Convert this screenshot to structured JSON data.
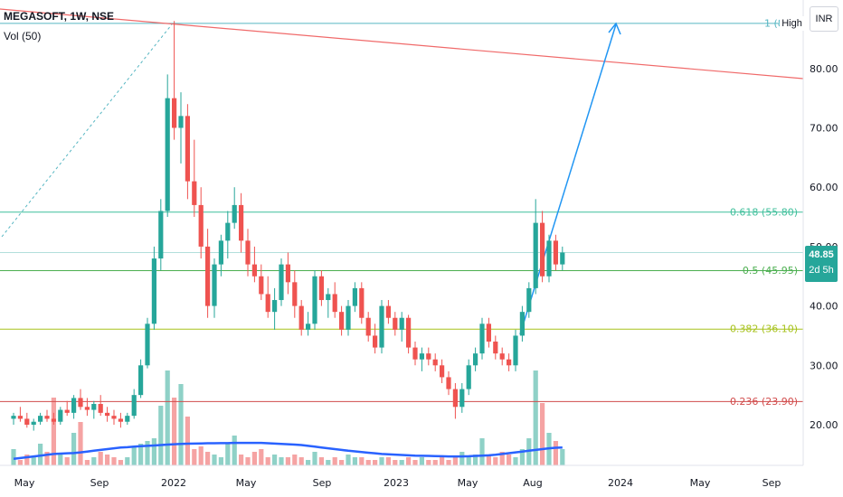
{
  "header": {
    "title": "MEGASOFT, 1W, NSE",
    "volume_label": "Vol (50)"
  },
  "currency_button": "INR",
  "high_tag": "High",
  "fib_top_label": "1 (8",
  "price_badge": {
    "value": "48.85",
    "countdown": "2d 5h"
  },
  "colors": {
    "up": "#26a69a",
    "down": "#ef5350",
    "up_vol": "#8fd1c7",
    "down_vol": "#f5a3a3",
    "volume_ma": "#2962ff",
    "trendline": "#f06a6a",
    "arrow": "#2196f3",
    "fib_100": "#56b6c2",
    "fib_618": "#3fbf9b",
    "fib_50": "#4caf50",
    "fib_382": "#a7c21c",
    "fib_236": "#d14b4b"
  },
  "chart_data": {
    "type": "candlestick",
    "timeframe": "1W",
    "x_ticks": [
      "May",
      "Sep",
      "2022",
      "May",
      "Sep",
      "2023",
      "May",
      "Aug",
      "2024",
      "May",
      "Sep"
    ],
    "y_ticks": [
      "20.00",
      "30.00",
      "40.00",
      "50.00",
      "60.00",
      "70.00",
      "80.00"
    ],
    "y_range": [
      12,
      92
    ],
    "fib_levels": [
      {
        "level": "1",
        "price": 87.6,
        "label": "1 (8"
      },
      {
        "level": "0.618",
        "price": 55.8,
        "label": "0.618 (55.80)"
      },
      {
        "level": "0.5",
        "price": 45.95,
        "label": "0.5 (45.95)"
      },
      {
        "level": "0.382",
        "price": 36.1,
        "label": "0.382 (36.10)"
      },
      {
        "level": "0.236",
        "price": 23.9,
        "label": "0.236 (23.90)"
      }
    ],
    "last_price": 48.85,
    "candles": [
      [
        21,
        22,
        20,
        21.5
      ],
      [
        21.5,
        23,
        20.5,
        21
      ],
      [
        21,
        22,
        19.5,
        20
      ],
      [
        20,
        21,
        19,
        20.5
      ],
      [
        20.5,
        22,
        20,
        21.5
      ],
      [
        21.5,
        22.5,
        20.5,
        21
      ],
      [
        21,
        22,
        20,
        20.5
      ],
      [
        20.5,
        23,
        20,
        22.5
      ],
      [
        22.5,
        24,
        21.5,
        22
      ],
      [
        22,
        25,
        21,
        24.5
      ],
      [
        24.5,
        26,
        22.5,
        23
      ],
      [
        23,
        24.5,
        21.5,
        22.5
      ],
      [
        22.5,
        24,
        21,
        23.5
      ],
      [
        23.5,
        25,
        21.5,
        22
      ],
      [
        22,
        23,
        20.5,
        21.5
      ],
      [
        21.5,
        22.5,
        20,
        21
      ],
      [
        21,
        22,
        19.5,
        20.5
      ],
      [
        20.5,
        22,
        20,
        21.5
      ],
      [
        21.5,
        26,
        21,
        25
      ],
      [
        25,
        31,
        24.5,
        30
      ],
      [
        30,
        38,
        29.5,
        37
      ],
      [
        37,
        50,
        36,
        48
      ],
      [
        48,
        58,
        46,
        56
      ],
      [
        56,
        79,
        55,
        75
      ],
      [
        75,
        88,
        68,
        70
      ],
      [
        70,
        76,
        64,
        72
      ],
      [
        72,
        74,
        58,
        61
      ],
      [
        61,
        68,
        55,
        57
      ],
      [
        57,
        60,
        48,
        50
      ],
      [
        50,
        53,
        38,
        40
      ],
      [
        40,
        48,
        38,
        47
      ],
      [
        47,
        52,
        45,
        51
      ],
      [
        51,
        56,
        48,
        54
      ],
      [
        54,
        60,
        53,
        57
      ],
      [
        57,
        59,
        49,
        51
      ],
      [
        51,
        53,
        45,
        47
      ],
      [
        47,
        50,
        44,
        45
      ],
      [
        45,
        47,
        41,
        42
      ],
      [
        42,
        45,
        38,
        39
      ],
      [
        39,
        43,
        36,
        41
      ],
      [
        41,
        48,
        40,
        47
      ],
      [
        47,
        49,
        42,
        44
      ],
      [
        44,
        46,
        38,
        40
      ],
      [
        40,
        41,
        35,
        36
      ],
      [
        36,
        39,
        35,
        37
      ],
      [
        37,
        46,
        36,
        45
      ],
      [
        45,
        46,
        40,
        41
      ],
      [
        41,
        43,
        38,
        42
      ],
      [
        42,
        44,
        38,
        39
      ],
      [
        39,
        40,
        35,
        36
      ],
      [
        36,
        41,
        35,
        40
      ],
      [
        40,
        44,
        39,
        43
      ],
      [
        43,
        44,
        37,
        38
      ],
      [
        38,
        39,
        34,
        35
      ],
      [
        35,
        37,
        32,
        33
      ],
      [
        33,
        41,
        32,
        40
      ],
      [
        40,
        41,
        37,
        38
      ],
      [
        38,
        39,
        35,
        36
      ],
      [
        36,
        39,
        34,
        38
      ],
      [
        38,
        38.5,
        32,
        33
      ],
      [
        33,
        34,
        30,
        31
      ],
      [
        31,
        33,
        29,
        32
      ],
      [
        32,
        33,
        30,
        31
      ],
      [
        31,
        32,
        29,
        30
      ],
      [
        30,
        31,
        27,
        28
      ],
      [
        28,
        29,
        25,
        26
      ],
      [
        26,
        27,
        21,
        23
      ],
      [
        23,
        27,
        22,
        26
      ],
      [
        26,
        31,
        25,
        30
      ],
      [
        30,
        33,
        29,
        32
      ],
      [
        32,
        38,
        31,
        37
      ],
      [
        37,
        38,
        33,
        34
      ],
      [
        34,
        35,
        31,
        32
      ],
      [
        32,
        33,
        30,
        31
      ],
      [
        31,
        32,
        29,
        30
      ],
      [
        30,
        36,
        29,
        35
      ],
      [
        35,
        40,
        34,
        39
      ],
      [
        39,
        44,
        38,
        43
      ],
      [
        43,
        58,
        42,
        54
      ],
      [
        54,
        56,
        44,
        45
      ],
      [
        45,
        52,
        44,
        51
      ],
      [
        51,
        52,
        46,
        47
      ],
      [
        47,
        50,
        46,
        49
      ]
    ],
    "volume": [
      6,
      2,
      4,
      3,
      8,
      5,
      25,
      4,
      3,
      12,
      16,
      2,
      3,
      5,
      4,
      3,
      2,
      3,
      7,
      8,
      9,
      10,
      22,
      35,
      25,
      30,
      18,
      6,
      7,
      5,
      4,
      3,
      8,
      11,
      4,
      3,
      5,
      6,
      3,
      4,
      3,
      3,
      4,
      3,
      2,
      5,
      3,
      2,
      3,
      2,
      4,
      3,
      3,
      2,
      2,
      3,
      3,
      2,
      2,
      3,
      2,
      3,
      2,
      2,
      3,
      2,
      3,
      5,
      3,
      4,
      10,
      4,
      3,
      5,
      4,
      3,
      6,
      10,
      35,
      23,
      12,
      9,
      6
    ],
    "volume_ma": [
      4,
      4.5,
      5,
      5.5,
      6,
      6.5,
      7,
      7.2,
      7.4,
      7.6,
      8,
      8.5,
      9,
      9.5,
      10,
      10.5,
      11,
      11.2,
      11.5,
      11.8,
      12,
      12.2,
      12.5,
      12.8,
      13,
      13.2,
      13.3,
      13.4,
      13.5,
      13.6,
      13.6,
      13.7,
      13.7,
      13.8,
      13.8,
      13.8,
      13.8,
      13.8,
      13.6,
      13.4,
      13.2,
      13,
      12.8,
      12.5,
      12,
      11.5,
      11,
      10.5,
      10,
      9.5,
      9,
      8.6,
      8.2,
      7.8,
      7.4,
      7,
      6.8,
      6.6,
      6.4,
      6.2,
      6,
      5.9,
      5.8,
      5.7,
      5.6,
      5.5,
      5.5,
      5.5,
      5.6,
      5.8,
      6,
      6.2,
      6.5,
      7,
      7.5,
      8,
      8.5,
      9,
      9.5,
      10,
      10.5,
      10.8,
      11
    ]
  }
}
